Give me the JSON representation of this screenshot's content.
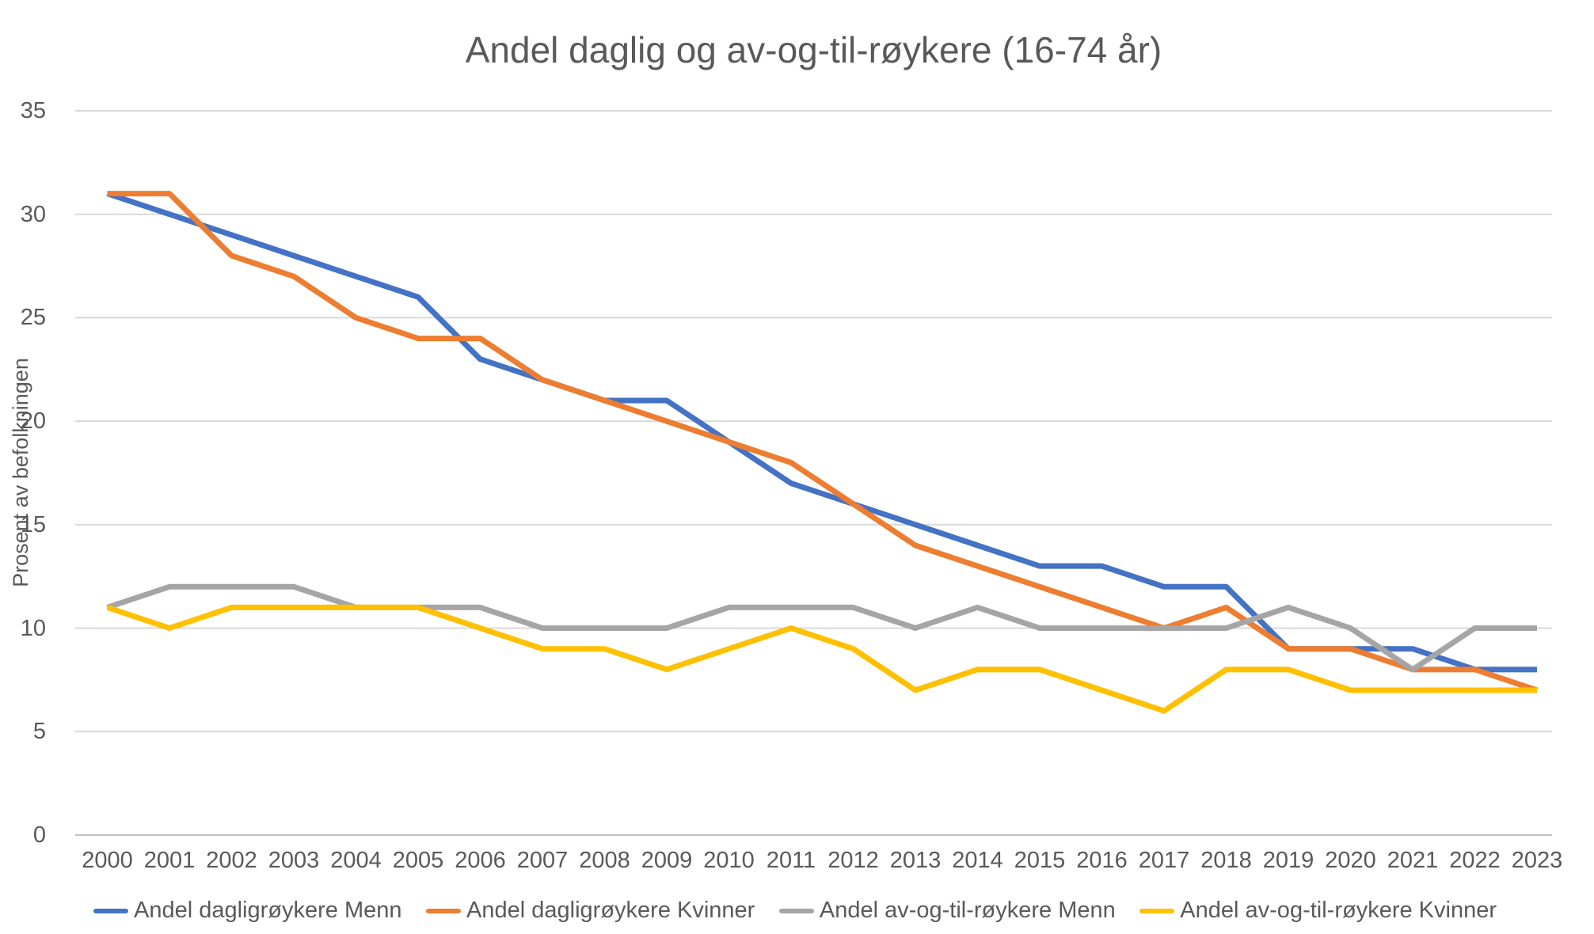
{
  "chart_data": {
    "type": "line",
    "title": "Andel daglig og av-og-til-røykere (16-74 år)",
    "ylabel": "Prosent av befolkningen",
    "xlabel": "",
    "categories": [
      "2000",
      "2001",
      "2002",
      "2003",
      "2004",
      "2005",
      "2006",
      "2007",
      "2008",
      "2009",
      "2010",
      "2011",
      "2012",
      "2013",
      "2014",
      "2015",
      "2016",
      "2017",
      "2018",
      "2019",
      "2020",
      "2021",
      "2022",
      "2023"
    ],
    "yticks": [
      0,
      5,
      10,
      15,
      20,
      25,
      30,
      35
    ],
    "ylim": [
      0,
      35
    ],
    "grid": true,
    "legend_position": "bottom",
    "series": [
      {
        "name": "Andel dagligrøykere Menn",
        "color": "#4472C4",
        "values": [
          31,
          30,
          29,
          28,
          27,
          26,
          23,
          22,
          21,
          21,
          19,
          17,
          16,
          15,
          14,
          13,
          13,
          12,
          12,
          9,
          9,
          9,
          8,
          8
        ]
      },
      {
        "name": "Andel dagligrøykere Kvinner",
        "color": "#ED7D31",
        "values": [
          31,
          31,
          28,
          27,
          25,
          24,
          24,
          22,
          21,
          20,
          19,
          18,
          16,
          14,
          13,
          12,
          11,
          10,
          11,
          9,
          9,
          8,
          8,
          7
        ]
      },
      {
        "name": "Andel av-og-til-røykere Menn",
        "color": "#A5A5A5",
        "values": [
          11,
          12,
          12,
          12,
          11,
          11,
          11,
          10,
          10,
          10,
          11,
          11,
          11,
          10,
          11,
          10,
          10,
          10,
          10,
          11,
          10,
          8,
          10,
          10
        ]
      },
      {
        "name": "Andel av-og-til-røykere Kvinner",
        "color": "#FFC000",
        "values": [
          11,
          10,
          11,
          11,
          11,
          11,
          10,
          9,
          9,
          8,
          9,
          10,
          9,
          7,
          8,
          8,
          7,
          6,
          8,
          8,
          7,
          7,
          7,
          7
        ]
      }
    ],
    "colors": {
      "gridline": "#D9D9D9",
      "axis_line": "#BFBFBF",
      "text": "#595959"
    }
  }
}
